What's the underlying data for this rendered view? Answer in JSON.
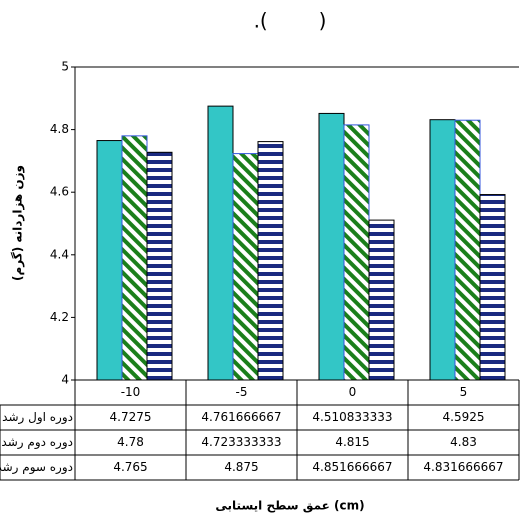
{
  "chart_data": {
    "type": "bar",
    "title": ".(        )",
    "y_label": "وزن هزاردانه (گرم)",
    "x_label": "عمق سطح ایستابی (cm)",
    "categories": [
      "-10",
      "-5",
      "0",
      "5"
    ],
    "series": [
      {
        "name": "دوره اول رشد",
        "color": "#1a2a80",
        "pattern": "horizontal",
        "values": [
          4.7275,
          4.761666667,
          4.510833333,
          4.5925
        ]
      },
      {
        "name": "دوره دوم رشد",
        "color": "#1b7f1b",
        "pattern": "diagonal",
        "values": [
          4.78,
          4.723333333,
          4.815,
          4.83
        ]
      },
      {
        "name": "دوره سوم رشد",
        "color": "#33c6c6",
        "pattern": "solid",
        "values": [
          4.765,
          4.875,
          4.851666667,
          4.831666667
        ]
      }
    ],
    "ylim": [
      4,
      5
    ],
    "yticks": [
      4,
      4.2,
      4.4,
      4.6,
      4.8,
      5
    ],
    "grid": false
  }
}
